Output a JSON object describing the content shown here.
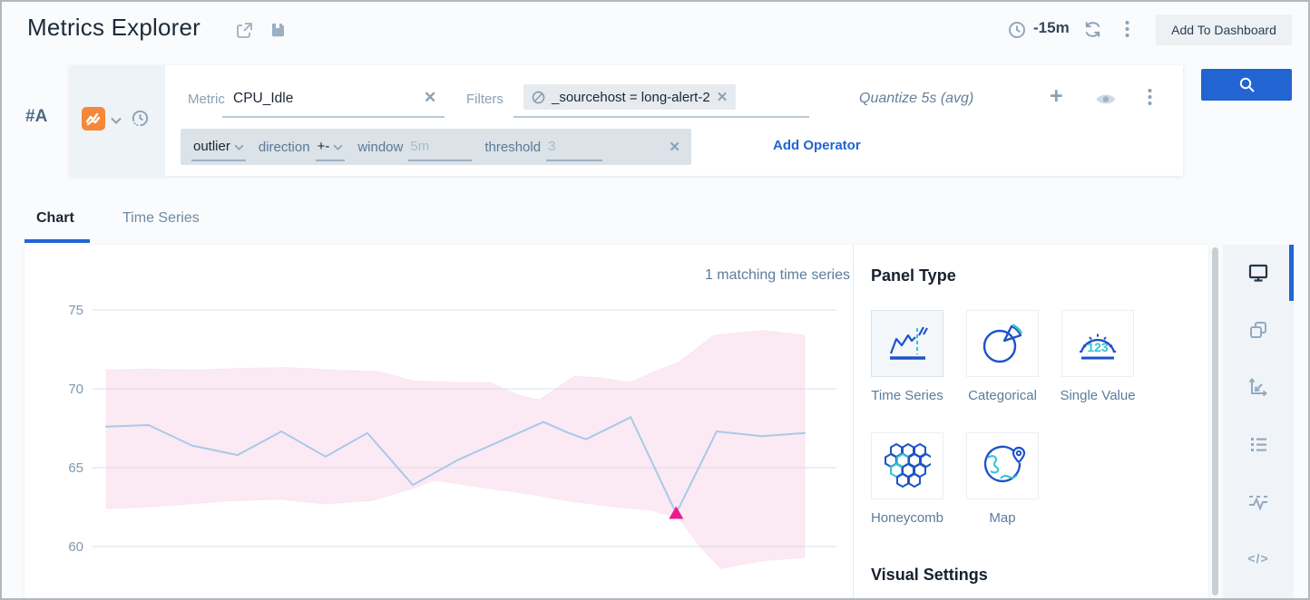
{
  "header": {
    "title": "Metrics Explorer",
    "time_range": "-15m",
    "add_to_dashboard": "Add To Dashboard"
  },
  "query_row": {
    "id_label": "#A",
    "metric_label": "Metric",
    "metric_value": "CPU_Idle",
    "filters_label": "Filters",
    "filter_chip_text": "_sourcehost = long-alert-2",
    "quantize_text": "Quantize 5s (avg)",
    "add_operator_label": "Add Operator",
    "operator": {
      "name": "outlier",
      "params": [
        {
          "label": "direction",
          "value": "+-",
          "is_placeholder": false
        },
        {
          "label": "window",
          "value": "5m",
          "is_placeholder": true
        },
        {
          "label": "threshold",
          "value": "3",
          "is_placeholder": true
        }
      ]
    }
  },
  "tabs": [
    {
      "label": "Chart",
      "active": true
    },
    {
      "label": "Time Series",
      "active": false
    }
  ],
  "chart": {
    "matching_label": "1 matching time series"
  },
  "chart_data": {
    "type": "line",
    "title": "",
    "xlabel": "",
    "ylabel": "",
    "ylim": [
      58,
      76
    ],
    "y_ticks": [
      75,
      70,
      65,
      60
    ],
    "x_axis_note": "time, last 15m, no tick labels visible; x given as percent 0-100 of plot width",
    "grid": "horizontal",
    "legend": "none",
    "series": [
      {
        "name": "CPU_Idle (avg, quantize 5s)",
        "x": [
          0,
          6.1,
          12.3,
          18.8,
          25.1,
          31.4,
          37.4,
          43.9,
          50.4,
          62.6,
          66.2,
          68.7,
          75.1,
          81.6,
          87.4,
          93.9,
          100
        ],
        "values": [
          67.6,
          67.7,
          66.4,
          65.8,
          67.3,
          65.7,
          67.2,
          63.9,
          65.5,
          67.9,
          67.2,
          66.8,
          68.2,
          62.1,
          67.3,
          67.0,
          67.2
        ]
      }
    ],
    "outlier_band": {
      "upper": [
        [
          0,
          71.2
        ],
        [
          6,
          71.25
        ],
        [
          13,
          71.2
        ],
        [
          19,
          71.3
        ],
        [
          26,
          71.35
        ],
        [
          32,
          71.2
        ],
        [
          39,
          71.1
        ],
        [
          44,
          70.5
        ],
        [
          50,
          70.4
        ],
        [
          55,
          70.4
        ],
        [
          59,
          69.6
        ],
        [
          62,
          69.3
        ],
        [
          67,
          70.8
        ],
        [
          71,
          70.7
        ],
        [
          75,
          70.4
        ],
        [
          78,
          71.0
        ],
        [
          82,
          71.7
        ],
        [
          87,
          73.4
        ],
        [
          94,
          73.7
        ],
        [
          100,
          73.4
        ]
      ],
      "lower": [
        [
          0,
          62.4
        ],
        [
          6,
          62.5
        ],
        [
          12,
          62.7
        ],
        [
          18,
          62.9
        ],
        [
          25,
          63.0
        ],
        [
          31,
          62.7
        ],
        [
          38,
          62.9
        ],
        [
          44,
          63.7
        ],
        [
          47,
          64.2
        ],
        [
          56,
          63.6
        ],
        [
          61,
          63.3
        ],
        [
          66,
          62.9
        ],
        [
          73,
          62.5
        ],
        [
          78,
          62.3
        ],
        [
          82,
          61.8
        ],
        [
          85,
          60.0
        ],
        [
          88,
          58.6
        ],
        [
          94,
          59.1
        ],
        [
          100,
          59.3
        ]
      ]
    },
    "anomaly_points": [
      {
        "x": 81.6,
        "value": 62.1
      }
    ]
  },
  "panel_type": {
    "heading": "Panel Type",
    "options": [
      {
        "label": "Time Series",
        "selected": true
      },
      {
        "label": "Categorical",
        "selected": false
      },
      {
        "label": "Single Value",
        "selected": false
      },
      {
        "label": "Honeycomb",
        "selected": false
      },
      {
        "label": "Map",
        "selected": false
      }
    ]
  },
  "visual_settings": {
    "heading": "Visual Settings"
  },
  "rail_icons": [
    "display",
    "duplicate-panels",
    "chart-axes",
    "legend-list",
    "threshold-outlier",
    "code-view"
  ],
  "colors": {
    "accent_blue": "#2264d1",
    "line_blue": "#a9c9e7",
    "band_pink_fill": "#f6cce2",
    "anomaly_magenta": "#ec1a8d",
    "metric_icon_orange": "#f5883b",
    "gridline": "#dde6ee",
    "icon_gray_blue": "#8ba1b5",
    "panel_icon_blue": "#1e53c8",
    "panel_icon_teal": "#35c3d3"
  }
}
